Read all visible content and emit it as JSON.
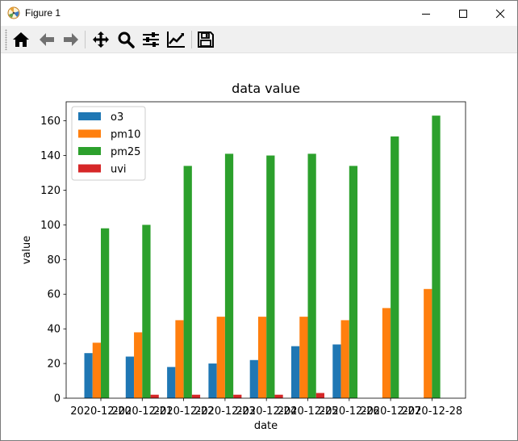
{
  "window": {
    "title": "Figure 1",
    "icon": "matplotlib-figure-icon",
    "controls": [
      "minimize-icon",
      "maximize-icon",
      "close-icon"
    ]
  },
  "toolbar": {
    "tools": [
      {
        "name": "home-button",
        "icon": "home-icon"
      },
      {
        "name": "back-button",
        "icon": "arrow-left-icon"
      },
      {
        "name": "forward-button",
        "icon": "arrow-right-icon"
      },
      {
        "name": "pan-button",
        "icon": "move-arrows-icon"
      },
      {
        "name": "zoom-button",
        "icon": "magnifier-icon"
      },
      {
        "name": "subplots-button",
        "icon": "sliders-icon"
      },
      {
        "name": "edit-axis-button",
        "icon": "line-chart-icon"
      },
      {
        "name": "save-button",
        "icon": "floppy-disk-icon"
      }
    ]
  },
  "chart_data": {
    "type": "bar",
    "title": "data value",
    "xlabel": "date",
    "ylabel": "value",
    "categories": [
      "2020-12-20",
      "2020-12-21",
      "2020-12-22",
      "2020-12-23",
      "2020-12-24",
      "2020-12-25",
      "2020-12-26",
      "2020-12-27",
      "2020-12-28"
    ],
    "series": [
      {
        "name": "o3",
        "color": "#1f77b4",
        "values": [
          26,
          24,
          18,
          20,
          22,
          30,
          31,
          null,
          null
        ]
      },
      {
        "name": "pm10",
        "color": "#ff7f0e",
        "values": [
          32,
          38,
          45,
          47,
          47,
          47,
          45,
          52,
          63
        ]
      },
      {
        "name": "pm25",
        "color": "#2ca02c",
        "values": [
          98,
          100,
          134,
          141,
          140,
          141,
          134,
          151,
          163
        ]
      },
      {
        "name": "uvi",
        "color": "#d62728",
        "values": [
          null,
          2,
          2,
          2,
          2,
          3,
          null,
          null,
          null
        ]
      }
    ],
    "ylim": [
      0,
      171
    ],
    "yticks": [
      0,
      20,
      40,
      60,
      80,
      100,
      120,
      140,
      160
    ],
    "legend": "upper-left",
    "grid": false
  }
}
